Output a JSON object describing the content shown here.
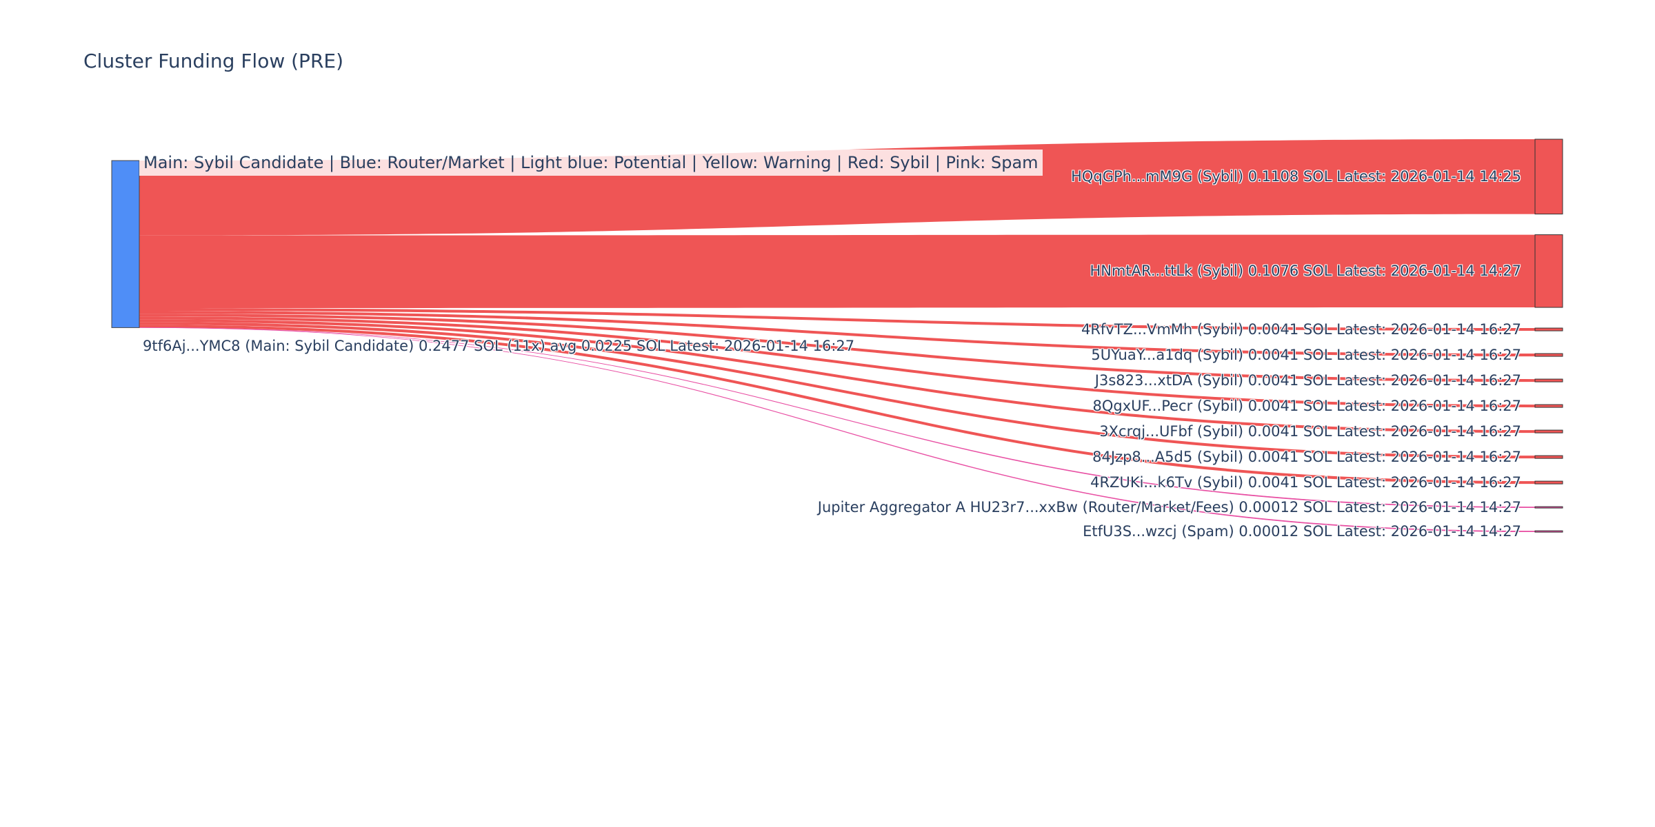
{
  "chart_data": {
    "type": "sankey",
    "title": "Cluster Funding Flow (PRE)",
    "legend_text": "Main: Sybil Candidate  |  Blue: Router/Market | Light blue: Potential | Yellow: Warning | Red: Sybil | Pink: Spam",
    "source": {
      "label": "9tf6Aj...YMC8 (Main: Sybil Candidate) 0.2477 SOL (11x) avg 0.0225 SOL Latest: 2026-01-14 16:27",
      "color": "#4f8ef7"
    },
    "targets": [
      {
        "label": "HQqGPh...mM9G (Sybil) 0.1108 SOL Latest: 2026-01-14 14:25",
        "value": 0.1108,
        "category": "Sybil",
        "color": "#ef5555"
      },
      {
        "label": "HNmtAR...ttLk (Sybil) 0.1076 SOL Latest: 2026-01-14 14:27",
        "value": 0.1076,
        "category": "Sybil",
        "color": "#ef5555"
      },
      {
        "label": "4RfvTZ...VmMh (Sybil) 0.0041 SOL Latest: 2026-01-14 16:27",
        "value": 0.0041,
        "category": "Sybil",
        "color": "#ef5555"
      },
      {
        "label": "5UYuaY...a1dq (Sybil) 0.0041 SOL Latest: 2026-01-14 16:27",
        "value": 0.0041,
        "category": "Sybil",
        "color": "#ef5555"
      },
      {
        "label": "J3s823...xtDA (Sybil) 0.0041 SOL Latest: 2026-01-14 16:27",
        "value": 0.0041,
        "category": "Sybil",
        "color": "#ef5555"
      },
      {
        "label": "8QgxUF...Pecr (Sybil) 0.0041 SOL Latest: 2026-01-14 16:27",
        "value": 0.0041,
        "category": "Sybil",
        "color": "#ef5555"
      },
      {
        "label": "3Xcrqj...UFbf (Sybil) 0.0041 SOL Latest: 2026-01-14 16:27",
        "value": 0.0041,
        "category": "Sybil",
        "color": "#ef5555"
      },
      {
        "label": "84Jzp8...A5d5 (Sybil) 0.0041 SOL Latest: 2026-01-14 16:27",
        "value": 0.0041,
        "category": "Sybil",
        "color": "#ef5555"
      },
      {
        "label": "4RZUKi...k6Tv (Sybil) 0.0041 SOL Latest: 2026-01-14 16:27",
        "value": 0.0041,
        "category": "Sybil",
        "color": "#ef5555"
      },
      {
        "label": "Jupiter Aggregator A HU23r7...xxBw (Router/Market/Fees) 0.00012 SOL Latest: 2026-01-14 14:27",
        "value": 0.00012,
        "category": "Router/Market/Fees",
        "color": "#e84fa3"
      },
      {
        "label": "EtfU3S...wzcj (Spam) 0.00012 SOL Latest: 2026-01-14 14:27",
        "value": 0.00012,
        "category": "Spam",
        "color": "#e84fa3"
      }
    ]
  }
}
